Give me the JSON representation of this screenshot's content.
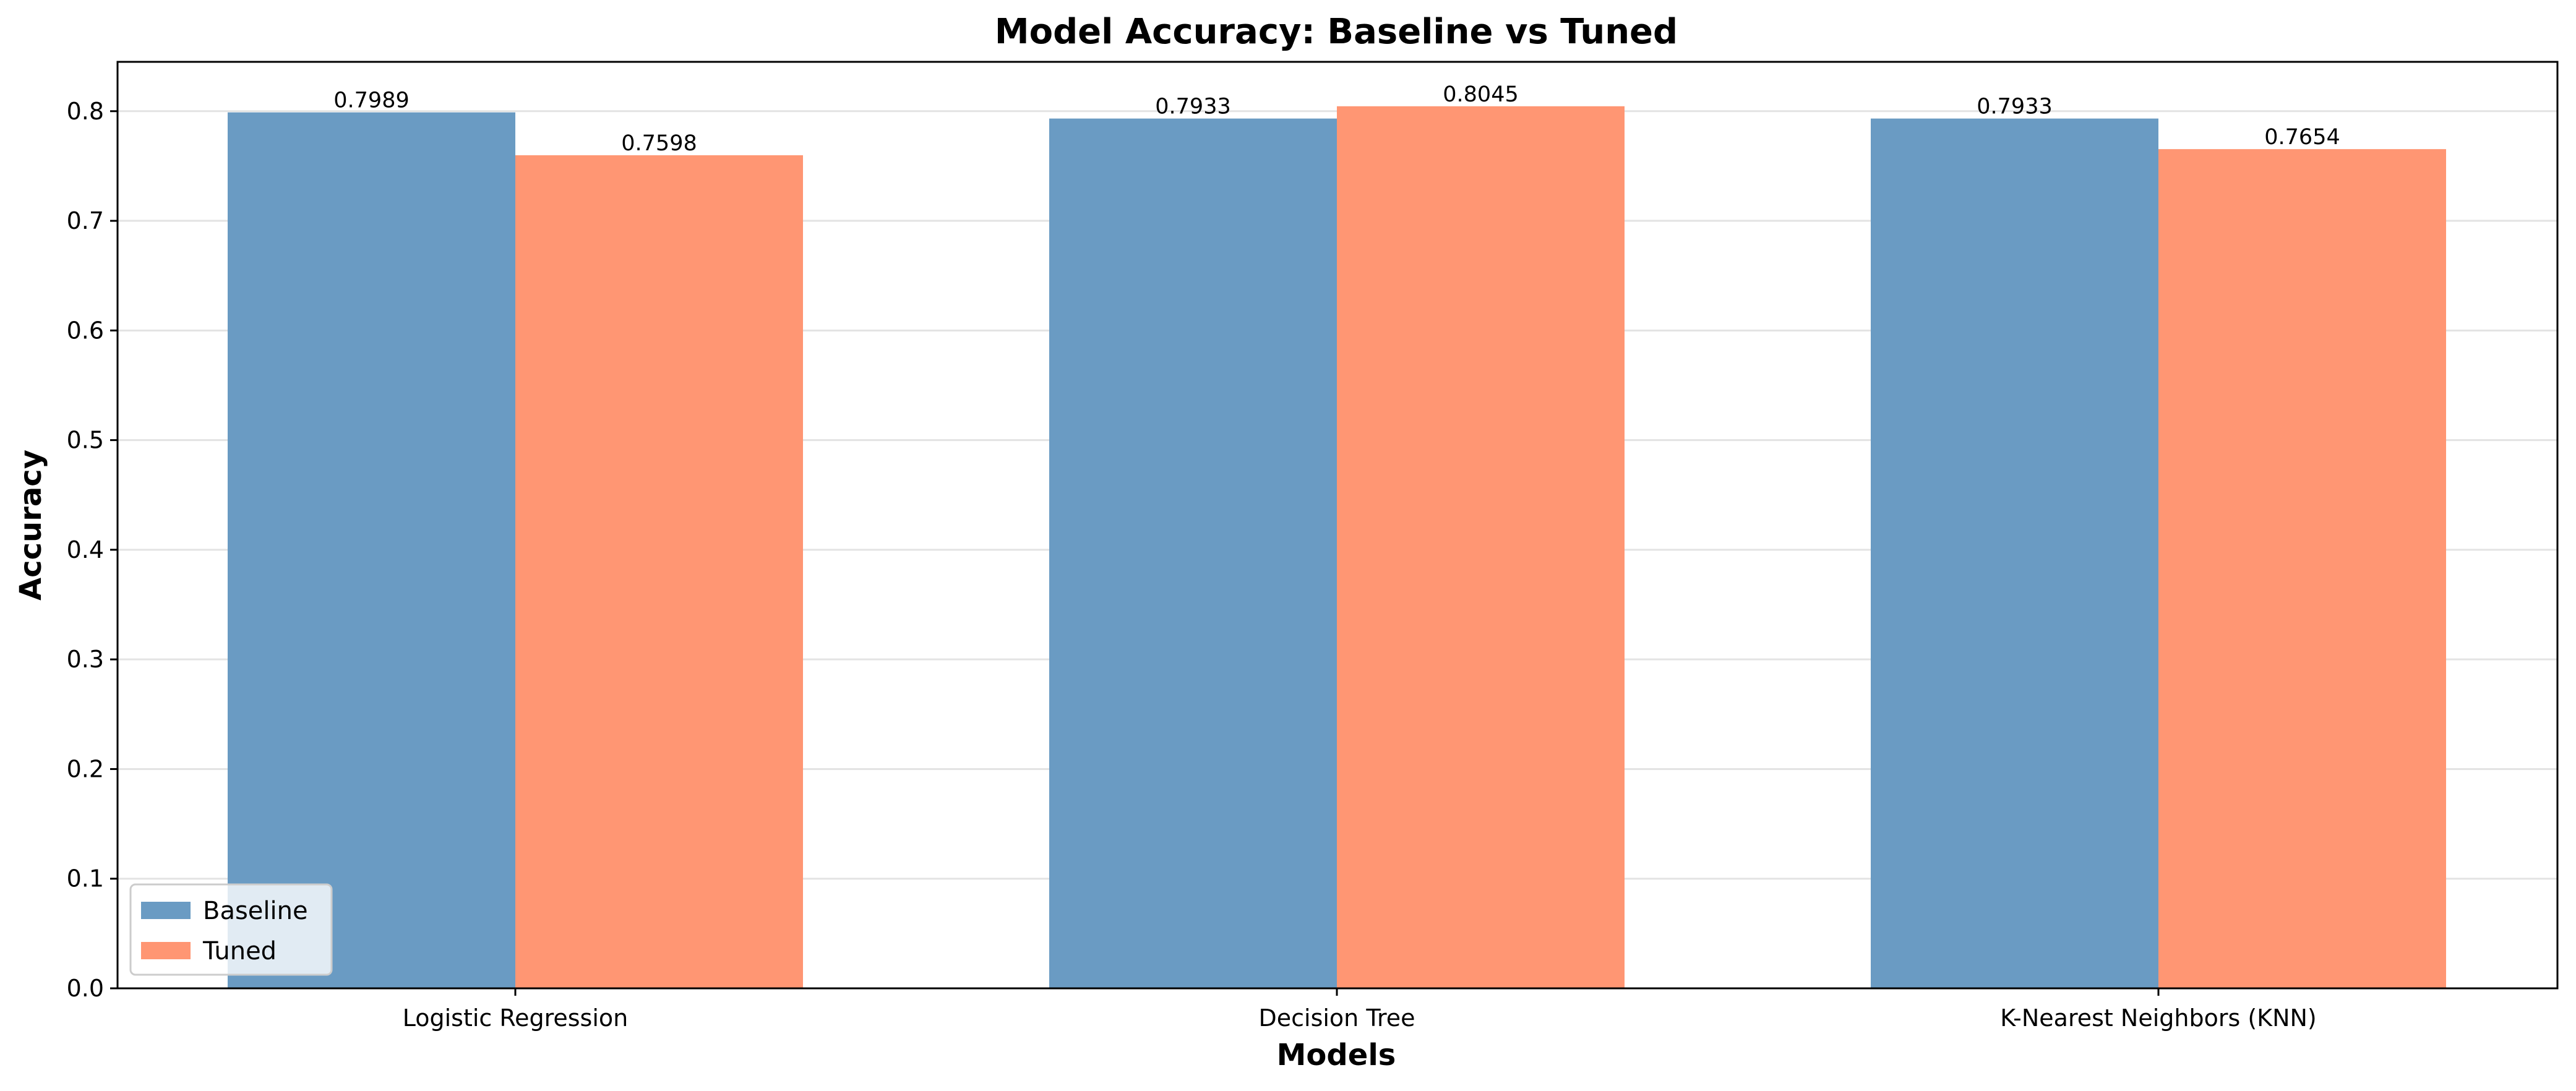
{
  "chart_data": {
    "type": "bar",
    "title": "Model Accuracy: Baseline vs Tuned",
    "xlabel": "Models",
    "ylabel": "Accuracy",
    "categories": [
      "Logistic Regression",
      "Decision Tree",
      "K-Nearest Neighbors (KNN)"
    ],
    "series": [
      {
        "name": "Baseline",
        "values": [
          0.7989,
          0.7933,
          0.7933
        ],
        "color": "#6a9bc3",
        "labels": [
          "0.7989",
          "0.7933",
          "0.7933"
        ]
      },
      {
        "name": "Tuned",
        "values": [
          0.7598,
          0.8045,
          0.7654
        ],
        "color": "#ff9673",
        "labels": [
          "0.7598",
          "0.8045",
          "0.7654"
        ]
      }
    ],
    "ylim": [
      0,
      0.845
    ],
    "yticks": [
      0.0,
      0.1,
      0.2,
      0.3,
      0.4,
      0.5,
      0.6,
      0.7,
      0.8
    ],
    "ytick_labels": [
      "0.0",
      "0.1",
      "0.2",
      "0.3",
      "0.4",
      "0.5",
      "0.6",
      "0.7",
      "0.8"
    ],
    "grid": "y",
    "legend_position": "lower-left"
  }
}
